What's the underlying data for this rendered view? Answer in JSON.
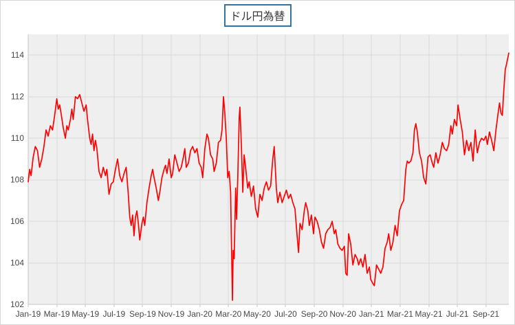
{
  "chart_data": {
    "type": "line",
    "title": "ドル円為替",
    "xlabel": "",
    "ylabel": "",
    "grid": true,
    "legend_position": "none",
    "x_tick_labels": [
      "Jan-19",
      "Mar-19",
      "May-19",
      "Jul-19",
      "Sep-19",
      "Nov-19",
      "Jan-20",
      "Mar-20",
      "May-20",
      "Jul-20",
      "Sep-20",
      "Nov-20",
      "Jan-21",
      "Mar-21",
      "May-21",
      "Jul-21",
      "Sep-21"
    ],
    "x_tick_positions_months": [
      0,
      2,
      4,
      6,
      8,
      10,
      12,
      14,
      16,
      18,
      20,
      22,
      24,
      26,
      28,
      30,
      32
    ],
    "x_range_months": [
      0,
      33.6
    ],
    "y_ticks": [
      102,
      104,
      106,
      108,
      110,
      112,
      114
    ],
    "y_range": [
      102,
      115
    ],
    "plot_bg_color": "#efefef",
    "grid_color": "#dadada",
    "axis_line_color": "#c6c6c6",
    "tick_text_color": "#474747",
    "title_border_color": "#2e74a8",
    "series": [
      {
        "color": "#ff0000",
        "points": [
          [
            0.0,
            107.9
          ],
          [
            0.1,
            108.5
          ],
          [
            0.2,
            108.2
          ],
          [
            0.35,
            109.1
          ],
          [
            0.5,
            109.6
          ],
          [
            0.65,
            109.4
          ],
          [
            0.8,
            108.6
          ],
          [
            0.95,
            109.0
          ],
          [
            1.1,
            109.6
          ],
          [
            1.25,
            110.4
          ],
          [
            1.4,
            110.1
          ],
          [
            1.55,
            110.6
          ],
          [
            1.7,
            110.4
          ],
          [
            1.85,
            111.1
          ],
          [
            2.0,
            111.9
          ],
          [
            2.1,
            111.4
          ],
          [
            2.2,
            111.6
          ],
          [
            2.3,
            111.2
          ],
          [
            2.45,
            110.5
          ],
          [
            2.6,
            110.0
          ],
          [
            2.7,
            110.6
          ],
          [
            2.8,
            110.4
          ],
          [
            2.95,
            110.9
          ],
          [
            3.05,
            111.4
          ],
          [
            3.15,
            110.9
          ],
          [
            3.3,
            112.0
          ],
          [
            3.45,
            111.9
          ],
          [
            3.6,
            112.1
          ],
          [
            3.75,
            111.7
          ],
          [
            3.9,
            111.3
          ],
          [
            4.05,
            111.6
          ],
          [
            4.15,
            110.9
          ],
          [
            4.3,
            110.0
          ],
          [
            4.4,
            109.7
          ],
          [
            4.5,
            110.2
          ],
          [
            4.6,
            109.4
          ],
          [
            4.7,
            109.9
          ],
          [
            4.8,
            109.5
          ],
          [
            4.95,
            108.4
          ],
          [
            5.1,
            108.1
          ],
          [
            5.25,
            108.6
          ],
          [
            5.4,
            108.2
          ],
          [
            5.5,
            108.5
          ],
          [
            5.65,
            107.3
          ],
          [
            5.8,
            107.8
          ],
          [
            5.95,
            107.9
          ],
          [
            6.1,
            108.5
          ],
          [
            6.25,
            109.0
          ],
          [
            6.4,
            108.2
          ],
          [
            6.55,
            107.9
          ],
          [
            6.7,
            108.3
          ],
          [
            6.85,
            108.6
          ],
          [
            7.0,
            107.3
          ],
          [
            7.1,
            106.2
          ],
          [
            7.2,
            105.8
          ],
          [
            7.3,
            106.3
          ],
          [
            7.4,
            105.3
          ],
          [
            7.5,
            106.2
          ],
          [
            7.6,
            106.5
          ],
          [
            7.7,
            105.9
          ],
          [
            7.8,
            105.1
          ],
          [
            7.95,
            105.9
          ],
          [
            8.05,
            106.2
          ],
          [
            8.15,
            105.8
          ],
          [
            8.3,
            106.9
          ],
          [
            8.45,
            107.6
          ],
          [
            8.6,
            108.2
          ],
          [
            8.7,
            108.5
          ],
          [
            8.8,
            108.1
          ],
          [
            8.95,
            107.6
          ],
          [
            9.1,
            107.0
          ],
          [
            9.2,
            107.4
          ],
          [
            9.35,
            108.1
          ],
          [
            9.5,
            108.5
          ],
          [
            9.6,
            108.7
          ],
          [
            9.7,
            108.3
          ],
          [
            9.85,
            109.0
          ],
          [
            10.0,
            108.1
          ],
          [
            10.1,
            108.3
          ],
          [
            10.25,
            109.2
          ],
          [
            10.4,
            108.8
          ],
          [
            10.55,
            108.4
          ],
          [
            10.7,
            108.6
          ],
          [
            10.85,
            109.1
          ],
          [
            10.95,
            109.5
          ],
          [
            11.05,
            108.6
          ],
          [
            11.2,
            108.8
          ],
          [
            11.35,
            109.4
          ],
          [
            11.5,
            109.6
          ],
          [
            11.65,
            109.3
          ],
          [
            11.8,
            109.5
          ],
          [
            11.95,
            108.8
          ],
          [
            12.1,
            108.6
          ],
          [
            12.2,
            108.1
          ],
          [
            12.35,
            109.5
          ],
          [
            12.5,
            110.2
          ],
          [
            12.6,
            110.0
          ],
          [
            12.75,
            109.2
          ],
          [
            12.9,
            109.0
          ],
          [
            13.0,
            108.4
          ],
          [
            13.15,
            108.8
          ],
          [
            13.3,
            109.8
          ],
          [
            13.45,
            109.9
          ],
          [
            13.55,
            110.4
          ],
          [
            13.65,
            112.0
          ],
          [
            13.75,
            111.2
          ],
          [
            13.85,
            110.0
          ],
          [
            13.95,
            108.1
          ],
          [
            14.05,
            108.4
          ],
          [
            14.15,
            107.4
          ],
          [
            14.2,
            105.3
          ],
          [
            14.28,
            102.2
          ],
          [
            14.33,
            104.6
          ],
          [
            14.4,
            104.2
          ],
          [
            14.5,
            107.6
          ],
          [
            14.57,
            106.1
          ],
          [
            14.65,
            108.1
          ],
          [
            14.75,
            111.0
          ],
          [
            14.8,
            111.5
          ],
          [
            14.9,
            109.7
          ],
          [
            15.0,
            107.4
          ],
          [
            15.1,
            109.2
          ],
          [
            15.2,
            108.6
          ],
          [
            15.35,
            107.6
          ],
          [
            15.45,
            107.9
          ],
          [
            15.6,
            107.2
          ],
          [
            15.75,
            107.7
          ],
          [
            15.9,
            106.6
          ],
          [
            16.05,
            106.2
          ],
          [
            16.2,
            107.3
          ],
          [
            16.35,
            107.0
          ],
          [
            16.5,
            107.6
          ],
          [
            16.65,
            107.9
          ],
          [
            16.8,
            107.5
          ],
          [
            16.95,
            107.7
          ],
          [
            17.1,
            109.0
          ],
          [
            17.2,
            109.6
          ],
          [
            17.35,
            107.6
          ],
          [
            17.45,
            106.9
          ],
          [
            17.6,
            107.4
          ],
          [
            17.75,
            106.9
          ],
          [
            17.9,
            107.2
          ],
          [
            18.05,
            107.5
          ],
          [
            18.2,
            107.1
          ],
          [
            18.35,
            107.3
          ],
          [
            18.5,
            106.9
          ],
          [
            18.65,
            106.6
          ],
          [
            18.8,
            105.3
          ],
          [
            18.9,
            104.5
          ],
          [
            19.0,
            105.9
          ],
          [
            19.15,
            105.6
          ],
          [
            19.3,
            106.5
          ],
          [
            19.4,
            106.9
          ],
          [
            19.55,
            106.5
          ],
          [
            19.65,
            105.8
          ],
          [
            19.8,
            106.3
          ],
          [
            19.95,
            105.4
          ],
          [
            20.05,
            106.2
          ],
          [
            20.2,
            106.0
          ],
          [
            20.35,
            105.6
          ],
          [
            20.5,
            105.0
          ],
          [
            20.65,
            104.7
          ],
          [
            20.8,
            105.4
          ],
          [
            20.95,
            105.6
          ],
          [
            21.1,
            105.7
          ],
          [
            21.25,
            106.0
          ],
          [
            21.4,
            105.4
          ],
          [
            21.5,
            105.6
          ],
          [
            21.65,
            104.9
          ],
          [
            21.8,
            104.7
          ],
          [
            21.95,
            104.6
          ],
          [
            22.1,
            104.8
          ],
          [
            22.2,
            103.5
          ],
          [
            22.3,
            103.4
          ],
          [
            22.4,
            105.4
          ],
          [
            22.55,
            104.9
          ],
          [
            22.7,
            103.9
          ],
          [
            22.85,
            104.4
          ],
          [
            23.0,
            104.2
          ],
          [
            23.1,
            103.9
          ],
          [
            23.25,
            104.2
          ],
          [
            23.4,
            103.8
          ],
          [
            23.55,
            104.4
          ],
          [
            23.7,
            103.5
          ],
          [
            23.85,
            103.8
          ],
          [
            23.95,
            103.2
          ],
          [
            24.1,
            103.0
          ],
          [
            24.2,
            102.9
          ],
          [
            24.35,
            103.9
          ],
          [
            24.5,
            103.7
          ],
          [
            24.65,
            103.5
          ],
          [
            24.8,
            103.8
          ],
          [
            24.95,
            104.7
          ],
          [
            25.1,
            105.0
          ],
          [
            25.2,
            105.4
          ],
          [
            25.35,
            104.6
          ],
          [
            25.5,
            105.0
          ],
          [
            25.65,
            105.8
          ],
          [
            25.8,
            105.3
          ],
          [
            25.95,
            106.5
          ],
          [
            26.1,
            106.8
          ],
          [
            26.25,
            107.0
          ],
          [
            26.4,
            108.5
          ],
          [
            26.5,
            108.9
          ],
          [
            26.6,
            108.8
          ],
          [
            26.75,
            108.9
          ],
          [
            26.9,
            109.3
          ],
          [
            27.0,
            110.4
          ],
          [
            27.1,
            110.7
          ],
          [
            27.2,
            110.3
          ],
          [
            27.35,
            109.3
          ],
          [
            27.5,
            108.9
          ],
          [
            27.65,
            108.1
          ],
          [
            27.8,
            107.8
          ],
          [
            27.95,
            109.1
          ],
          [
            28.1,
            109.2
          ],
          [
            28.25,
            108.8
          ],
          [
            28.35,
            108.6
          ],
          [
            28.5,
            109.3
          ],
          [
            28.65,
            108.8
          ],
          [
            28.8,
            109.2
          ],
          [
            28.95,
            109.8
          ],
          [
            29.1,
            109.5
          ],
          [
            29.25,
            109.4
          ],
          [
            29.4,
            109.7
          ],
          [
            29.55,
            110.6
          ],
          [
            29.65,
            110.2
          ],
          [
            29.8,
            110.9
          ],
          [
            29.95,
            110.6
          ],
          [
            30.05,
            111.6
          ],
          [
            30.2,
            110.9
          ],
          [
            30.35,
            110.3
          ],
          [
            30.5,
            109.2
          ],
          [
            30.65,
            109.9
          ],
          [
            30.8,
            109.4
          ],
          [
            30.95,
            109.8
          ],
          [
            31.1,
            108.9
          ],
          [
            31.25,
            110.4
          ],
          [
            31.4,
            109.3
          ],
          [
            31.55,
            109.8
          ],
          [
            31.7,
            110.0
          ],
          [
            31.85,
            109.9
          ],
          [
            32.0,
            110.1
          ],
          [
            32.1,
            109.7
          ],
          [
            32.25,
            110.3
          ],
          [
            32.4,
            109.9
          ],
          [
            32.55,
            109.4
          ],
          [
            32.7,
            110.4
          ],
          [
            32.85,
            111.2
          ],
          [
            32.95,
            111.7
          ],
          [
            33.05,
            111.2
          ],
          [
            33.15,
            111.1
          ],
          [
            33.25,
            112.3
          ],
          [
            33.35,
            113.3
          ],
          [
            33.45,
            113.6
          ],
          [
            33.6,
            114.1
          ]
        ]
      }
    ]
  }
}
